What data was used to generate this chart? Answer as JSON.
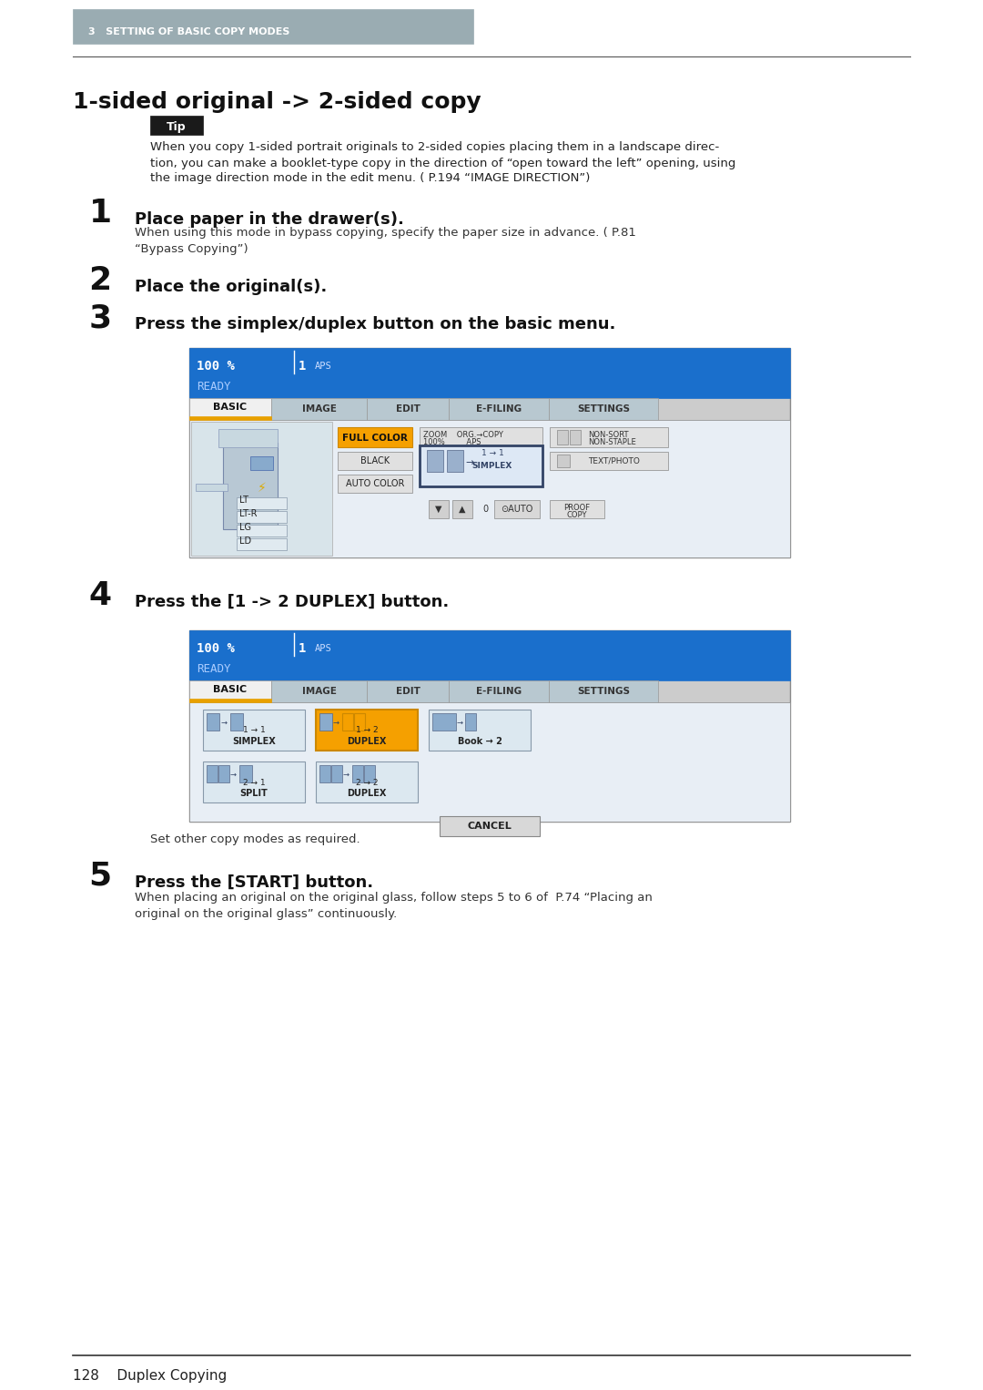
{
  "page_bg": "#ffffff",
  "header_bg": "#9aacb2",
  "header_text": "3   SETTING OF BASIC COPY MODES",
  "header_text_color": "#ffffff",
  "title": "1-sided original -> 2-sided copy",
  "tip_bg": "#222222",
  "tip_text": "Tip",
  "tip_body_lines": [
    "When you copy 1-sided portrait originals to 2-sided copies placing them in a landscape direc-",
    "tion, you can make a booklet-type copy in the direction of “open toward the left” opening, using",
    "the image direction mode in the edit menu. ( P.194 “IMAGE DIRECTION”)"
  ],
  "step1_num": "1",
  "step1_bold": "Place paper in the drawer(s).",
  "step1_body_lines": [
    "When using this mode in bypass copying, specify the paper size in advance. ( P.81",
    "“Bypass Copying”)"
  ],
  "step2_num": "2",
  "step2_bold": "Place the original(s).",
  "step3_num": "3",
  "step3_bold": "Press the simplex/duplex button on the basic menu.",
  "step4_num": "4",
  "step4_bold": "Press the [1 -> 2 DUPLEX] button.",
  "step4_note": "Set other copy modes as required.",
  "step5_num": "5",
  "step5_bold": "Press the [START] button.",
  "step5_body_lines": [
    "When placing an original on the original glass, follow steps 5 to 6 of  P.74 “Placing an",
    "original on the original glass” continuously."
  ],
  "footer_text": "128    Duplex Copying",
  "screen_blue": "#1a6fcc",
  "screen_dark_blue": "#0044aa",
  "screen_tab_gray": "#b0bec5",
  "screen_content_bg": "#e8eef5",
  "screen_border": "#888888"
}
